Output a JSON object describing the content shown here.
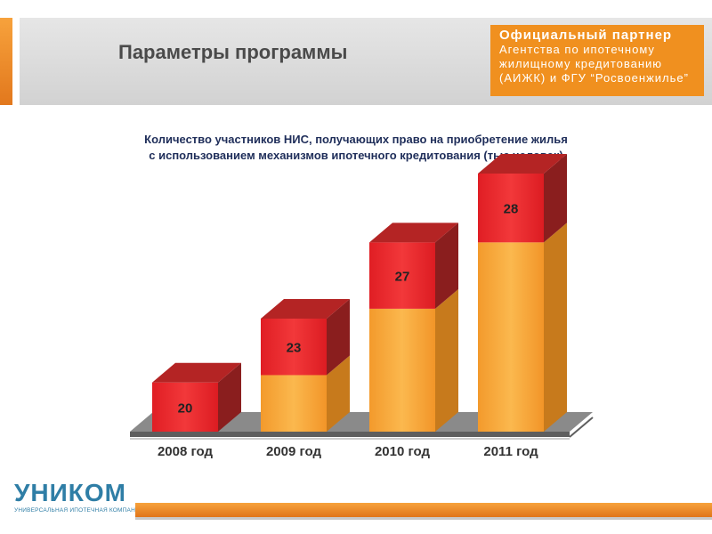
{
  "header": {
    "title": "Параметры программы"
  },
  "partner": {
    "title": "Официальный партнер",
    "lines": [
      "Агентства по ипотечному",
      "жилищному кредитованию",
      "(АИЖК) и ФГУ “Росвоенжилье”"
    ]
  },
  "logo": {
    "name": "УНИКОМ",
    "subtitle": "УНИВЕРСАЛЬНАЯ ИПОТЕЧНАЯ КОМПАНИЯ"
  },
  "chart_data": {
    "type": "bar",
    "title_lines": [
      "Количество участников НИС, получающих право на приобретение жилья",
      "с использованием механизмов ипотечного кредитования (тыс.человек)"
    ],
    "categories": [
      "2008 год",
      "2009 год",
      "2010 год",
      "2011 год"
    ],
    "series": [
      {
        "values": [
          0,
          23,
          50,
          77
        ]
      },
      {
        "values": [
          20,
          23,
          27,
          28
        ]
      }
    ],
    "data_labels": [
      "20",
      "23",
      "27",
      "28"
    ],
    "ylim": [
      0,
      105
    ],
    "grid": false,
    "legend": "none",
    "colors": {
      "front_orange": "#f7a63a",
      "front_red": "#e8262a",
      "side_orange": "#c77a1c",
      "side_red": "#8a1e1e",
      "top_red": "#b42424",
      "floor": "#8a8a8a",
      "floor_front": "#5e5e5e"
    }
  }
}
